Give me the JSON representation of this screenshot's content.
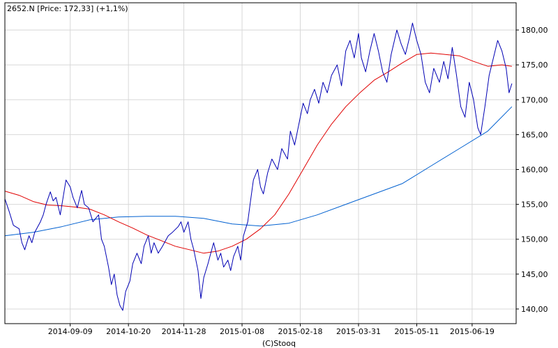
{
  "chart_data": {
    "type": "line",
    "title": "2652.N [Price: 172,33] (+1,1%)",
    "credit": "(C)Stooq",
    "grid": true,
    "y_axis_side": "right",
    "ylim": [
      137.9,
      183.9
    ],
    "y_ticks": [
      {
        "value": 140,
        "label": "140,00"
      },
      {
        "value": 145,
        "label": "145,00"
      },
      {
        "value": 150,
        "label": "150,00"
      },
      {
        "value": 155,
        "label": "155,00"
      },
      {
        "value": 160,
        "label": "160,00"
      },
      {
        "value": 165,
        "label": "165,00"
      },
      {
        "value": 170,
        "label": "170,00"
      },
      {
        "value": 175,
        "label": "175,00"
      },
      {
        "value": 180,
        "label": "180,00"
      }
    ],
    "x_ticks": [
      "2014-09-09",
      "2014-10-20",
      "2014-11-28",
      "2015-01-08",
      "2015-02-18",
      "2015-03-31",
      "2015-05-11",
      "2015-06-19"
    ],
    "x_start": "2014-07-25",
    "x_end": "2015-07-20",
    "series": [
      {
        "color": "#0000b4",
        "width": 1,
        "points": [
          [
            "2014-07-25",
            155.8
          ],
          [
            "2014-07-28",
            154.0
          ],
          [
            "2014-07-31",
            152.0
          ],
          [
            "2014-08-04",
            151.5
          ],
          [
            "2014-08-06",
            149.5
          ],
          [
            "2014-08-08",
            148.5
          ],
          [
            "2014-08-11",
            150.5
          ],
          [
            "2014-08-13",
            149.5
          ],
          [
            "2014-08-15",
            151.0
          ],
          [
            "2014-08-19",
            152.5
          ],
          [
            "2014-08-21",
            153.5
          ],
          [
            "2014-08-23",
            155.0
          ],
          [
            "2014-08-26",
            156.8
          ],
          [
            "2014-08-28",
            155.5
          ],
          [
            "2014-08-30",
            156.0
          ],
          [
            "2014-09-02",
            153.5
          ],
          [
            "2014-09-04",
            156.0
          ],
          [
            "2014-09-06",
            158.5
          ],
          [
            "2014-09-09",
            157.5
          ],
          [
            "2014-09-11",
            156.0
          ],
          [
            "2014-09-14",
            154.5
          ],
          [
            "2014-09-17",
            157.0
          ],
          [
            "2014-09-19",
            155.0
          ],
          [
            "2014-09-22",
            154.5
          ],
          [
            "2014-09-25",
            152.5
          ],
          [
            "2014-09-29",
            153.5
          ],
          [
            "2014-10-01",
            150.0
          ],
          [
            "2014-10-03",
            149.0
          ],
          [
            "2014-10-06",
            146.0
          ],
          [
            "2014-10-08",
            143.5
          ],
          [
            "2014-10-10",
            145.0
          ],
          [
            "2014-10-12",
            142.0
          ],
          [
            "2014-10-14",
            140.5
          ],
          [
            "2014-10-16",
            139.8
          ],
          [
            "2014-10-18",
            142.5
          ],
          [
            "2014-10-21",
            144.0
          ],
          [
            "2014-10-23",
            146.5
          ],
          [
            "2014-10-26",
            148.0
          ],
          [
            "2014-10-29",
            146.5
          ],
          [
            "2014-10-31",
            149.0
          ],
          [
            "2014-11-03",
            150.5
          ],
          [
            "2014-11-05",
            148.0
          ],
          [
            "2014-11-07",
            149.5
          ],
          [
            "2014-11-10",
            148.0
          ],
          [
            "2014-11-13",
            149.0
          ],
          [
            "2014-11-17",
            150.5
          ],
          [
            "2014-11-20",
            151.0
          ],
          [
            "2014-11-24",
            151.8
          ],
          [
            "2014-11-26",
            152.5
          ],
          [
            "2014-11-28",
            151.0
          ],
          [
            "2014-12-01",
            152.5
          ],
          [
            "2014-12-03",
            150.0
          ],
          [
            "2014-12-05",
            148.5
          ],
          [
            "2014-12-08",
            145.5
          ],
          [
            "2014-12-10",
            141.5
          ],
          [
            "2014-12-12",
            144.5
          ],
          [
            "2014-12-15",
            146.5
          ],
          [
            "2014-12-17",
            148.0
          ],
          [
            "2014-12-19",
            149.5
          ],
          [
            "2014-12-22",
            147.0
          ],
          [
            "2014-12-24",
            148.0
          ],
          [
            "2014-12-26",
            146.0
          ],
          [
            "2014-12-29",
            147.0
          ],
          [
            "2014-12-31",
            145.5
          ],
          [
            "2015-01-02",
            147.5
          ],
          [
            "2015-01-05",
            149.0
          ],
          [
            "2015-01-07",
            147.0
          ],
          [
            "2015-01-09",
            150.5
          ],
          [
            "2015-01-12",
            152.5
          ],
          [
            "2015-01-14",
            155.5
          ],
          [
            "2015-01-16",
            158.5
          ],
          [
            "2015-01-19",
            160.0
          ],
          [
            "2015-01-21",
            157.5
          ],
          [
            "2015-01-23",
            156.5
          ],
          [
            "2015-01-26",
            159.5
          ],
          [
            "2015-01-29",
            161.5
          ],
          [
            "2015-02-02",
            160.0
          ],
          [
            "2015-02-05",
            163.0
          ],
          [
            "2015-02-09",
            161.5
          ],
          [
            "2015-02-11",
            165.5
          ],
          [
            "2015-02-14",
            163.5
          ],
          [
            "2015-02-18",
            167.5
          ],
          [
            "2015-02-20",
            169.5
          ],
          [
            "2015-02-23",
            168.0
          ],
          [
            "2015-02-25",
            170.0
          ],
          [
            "2015-02-28",
            171.5
          ],
          [
            "2015-03-03",
            169.5
          ],
          [
            "2015-03-06",
            172.5
          ],
          [
            "2015-03-09",
            171.0
          ],
          [
            "2015-03-12",
            173.5
          ],
          [
            "2015-03-16",
            175.0
          ],
          [
            "2015-03-19",
            172.0
          ],
          [
            "2015-03-22",
            177.0
          ],
          [
            "2015-03-25",
            178.5
          ],
          [
            "2015-03-28",
            176.0
          ],
          [
            "2015-03-31",
            179.5
          ],
          [
            "2015-04-02",
            176.0
          ],
          [
            "2015-04-05",
            174.0
          ],
          [
            "2015-04-08",
            177.0
          ],
          [
            "2015-04-11",
            179.5
          ],
          [
            "2015-04-14",
            177.0
          ],
          [
            "2015-04-17",
            174.0
          ],
          [
            "2015-04-20",
            172.5
          ],
          [
            "2015-04-23",
            176.5
          ],
          [
            "2015-04-27",
            180.0
          ],
          [
            "2015-04-30",
            178.0
          ],
          [
            "2015-05-03",
            176.5
          ],
          [
            "2015-05-06",
            179.0
          ],
          [
            "2015-05-08",
            181.0
          ],
          [
            "2015-05-11",
            178.5
          ],
          [
            "2015-05-14",
            176.5
          ],
          [
            "2015-05-17",
            172.5
          ],
          [
            "2015-05-20",
            171.0
          ],
          [
            "2015-05-23",
            174.5
          ],
          [
            "2015-05-27",
            172.5
          ],
          [
            "2015-05-30",
            175.5
          ],
          [
            "2015-06-02",
            173.0
          ],
          [
            "2015-06-05",
            177.5
          ],
          [
            "2015-06-08",
            173.5
          ],
          [
            "2015-06-11",
            169.0
          ],
          [
            "2015-06-14",
            167.5
          ],
          [
            "2015-06-17",
            172.5
          ],
          [
            "2015-06-20",
            170.0
          ],
          [
            "2015-06-23",
            166.0
          ],
          [
            "2015-06-25",
            165.0
          ],
          [
            "2015-06-28",
            169.0
          ],
          [
            "2015-07-01",
            173.5
          ],
          [
            "2015-07-04",
            176.0
          ],
          [
            "2015-07-07",
            178.5
          ],
          [
            "2015-07-10",
            177.0
          ],
          [
            "2015-07-13",
            174.5
          ],
          [
            "2015-07-15",
            171.0
          ],
          [
            "2015-07-17",
            172.33
          ]
        ]
      },
      {
        "color": "#e00000",
        "width": 1,
        "points": [
          [
            "2014-07-25",
            156.9
          ],
          [
            "2014-08-04",
            156.3
          ],
          [
            "2014-08-14",
            155.4
          ],
          [
            "2014-08-24",
            154.9
          ],
          [
            "2014-09-03",
            154.8
          ],
          [
            "2014-09-13",
            154.6
          ],
          [
            "2014-09-23",
            154.3
          ],
          [
            "2014-10-03",
            153.5
          ],
          [
            "2014-10-13",
            152.5
          ],
          [
            "2014-10-23",
            151.6
          ],
          [
            "2014-11-02",
            150.6
          ],
          [
            "2014-11-12",
            149.8
          ],
          [
            "2014-11-22",
            149.0
          ],
          [
            "2014-12-02",
            148.5
          ],
          [
            "2014-12-12",
            148.0
          ],
          [
            "2014-12-22",
            148.3
          ],
          [
            "2015-01-01",
            149.0
          ],
          [
            "2015-01-11",
            150.0
          ],
          [
            "2015-01-21",
            151.5
          ],
          [
            "2015-01-31",
            153.5
          ],
          [
            "2015-02-10",
            156.5
          ],
          [
            "2015-02-20",
            160.0
          ],
          [
            "2015-03-02",
            163.5
          ],
          [
            "2015-03-12",
            166.5
          ],
          [
            "2015-03-22",
            169.0
          ],
          [
            "2015-04-01",
            171.0
          ],
          [
            "2015-04-11",
            172.8
          ],
          [
            "2015-04-21",
            174.0
          ],
          [
            "2015-05-01",
            175.3
          ],
          [
            "2015-05-11",
            176.5
          ],
          [
            "2015-05-21",
            176.7
          ],
          [
            "2015-05-31",
            176.5
          ],
          [
            "2015-06-10",
            176.3
          ],
          [
            "2015-06-20",
            175.5
          ],
          [
            "2015-06-30",
            174.8
          ],
          [
            "2015-07-10",
            175.0
          ],
          [
            "2015-07-17",
            174.8
          ]
        ]
      },
      {
        "color": "#0060d0",
        "width": 1,
        "points": [
          [
            "2014-07-25",
            150.5
          ],
          [
            "2014-08-14",
            151.0
          ],
          [
            "2014-09-03",
            151.8
          ],
          [
            "2014-09-23",
            152.8
          ],
          [
            "2014-10-13",
            153.2
          ],
          [
            "2014-11-02",
            153.3
          ],
          [
            "2014-11-22",
            153.3
          ],
          [
            "2014-12-12",
            153.0
          ],
          [
            "2015-01-01",
            152.2
          ],
          [
            "2015-01-21",
            151.9
          ],
          [
            "2015-02-10",
            152.3
          ],
          [
            "2015-03-02",
            153.5
          ],
          [
            "2015-03-22",
            155.0
          ],
          [
            "2015-04-11",
            156.5
          ],
          [
            "2015-05-01",
            158.0
          ],
          [
            "2015-05-21",
            160.5
          ],
          [
            "2015-06-10",
            163.0
          ],
          [
            "2015-06-30",
            165.5
          ],
          [
            "2015-07-17",
            169.0
          ]
        ]
      }
    ]
  }
}
